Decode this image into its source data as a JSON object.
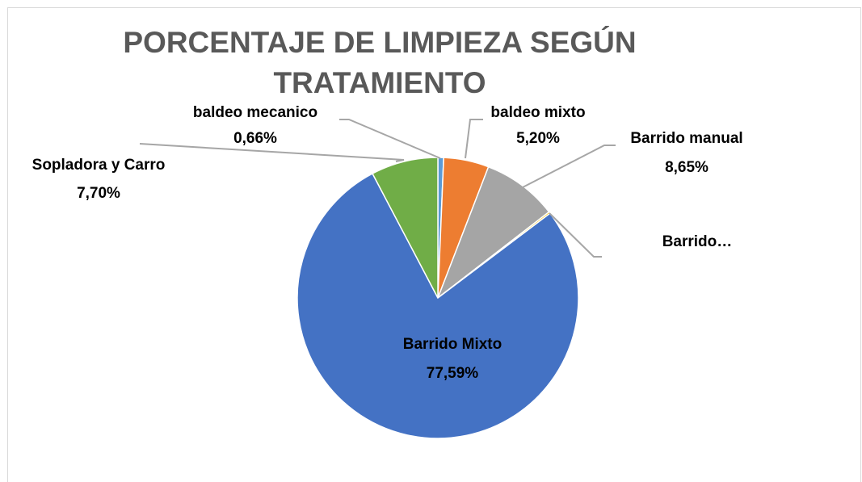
{
  "chart_data": {
    "type": "pie",
    "title": "PORCENTAJE DE LIMPIEZA SEGÚN TRATAMIENTO",
    "categories": [
      "baldeo mecanico",
      "baldeo mixto",
      "Barrido manual",
      "Barrido…",
      "Barrido Mixto",
      "Sopladora y Carro"
    ],
    "values": [
      0.66,
      5.2,
      8.65,
      0.2,
      77.59,
      7.7
    ],
    "value_labels": [
      "0,66%",
      "5,20%",
      "8,65%",
      null,
      "77,59%",
      "7,70%"
    ],
    "colors": [
      "#5b9bd5",
      "#ed7d31",
      "#a5a5a5",
      "#ffc000",
      "#4472c4",
      "#70ad47"
    ]
  }
}
